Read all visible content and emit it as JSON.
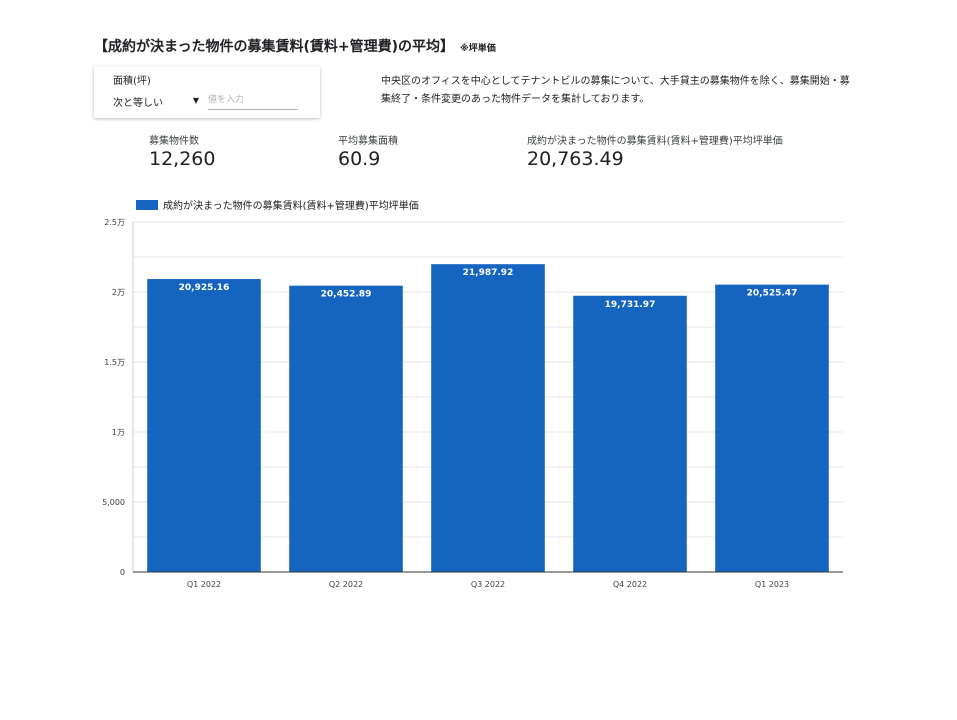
{
  "header": {
    "title": "【成約が決まった物件の募集賃料(賃料+管理費)の平均】",
    "note": "※坪単価"
  },
  "filter": {
    "label": "面積(坪)",
    "operator": "次と等しい",
    "placeholder": "値を入力",
    "caret_icon": "dropdown-arrow-icon"
  },
  "description": "中央区のオフィスを中心としてテナントビルの募集について、大手貸主の募集物件を除く、募集開始・募集終了・条件変更のあった物件データを集計しております。",
  "kpis": [
    {
      "label": "募集物件数",
      "value": "12,260"
    },
    {
      "label": "平均募集面積",
      "value": "60.9"
    },
    {
      "label": "成約が決まった物件の募集賃料(賃料+管理費)平均坪単価",
      "value": "20,763.49"
    }
  ],
  "chart_data": {
    "type": "bar",
    "categories": [
      "Q1 2022",
      "Q2 2022",
      "Q3 2022",
      "Q4 2022",
      "Q1 2023"
    ],
    "series": [
      {
        "name": "成約が決まった物件の募集賃料(賃料+管理費)平均坪単価",
        "values": [
          20925.16,
          20452.89,
          21987.92,
          19731.97,
          20525.47
        ],
        "labels": [
          "20,925.16",
          "20,452.89",
          "21,987.92",
          "19,731.97",
          "20,525.47"
        ],
        "color": "#1565c0"
      }
    ],
    "ylim": [
      0,
      25000
    ],
    "yticks": [
      0,
      5000,
      10000,
      15000,
      20000,
      25000
    ],
    "ytick_labels": [
      "0",
      "5,000",
      "1万",
      "1.5万",
      "2万",
      "2.5万"
    ],
    "grid": true,
    "legend_position": "top-left"
  }
}
